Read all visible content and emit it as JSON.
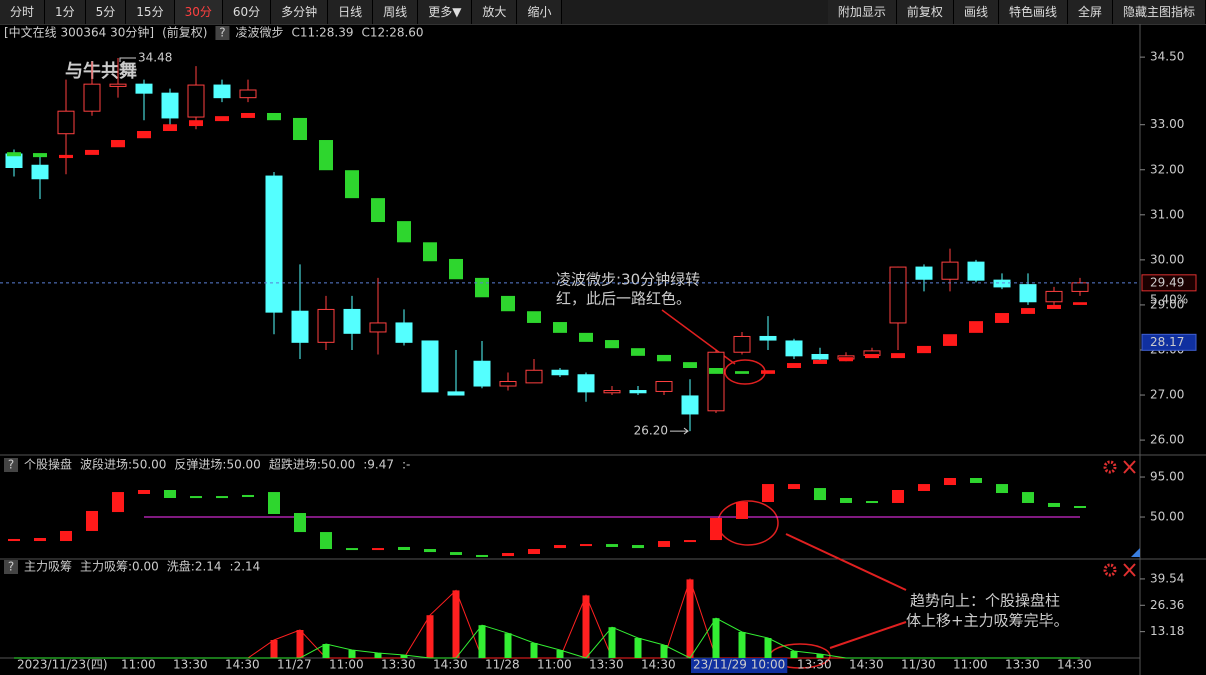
{
  "toolbar": {
    "left": [
      "分时",
      "1分",
      "5分",
      "15分",
      "30分",
      "60分",
      "多分钟",
      "日线",
      "周线",
      "更多▼",
      "放大",
      "缩小"
    ],
    "right": [
      "附加显示",
      "前复权",
      "画线",
      "特色画线",
      "全屏",
      "隐藏主图指标"
    ]
  },
  "help": "?",
  "watermark": "与牛共舞",
  "chart_data": [
    {
      "type": "candlestick",
      "title": "[中文在线 300364 30分钟]",
      "subtitle": "(前复权)",
      "indicator": "凌波微步",
      "series_labels": [
        {
          "label": "C11:28.39",
          "color": "#ffffff"
        },
        {
          "label": "C12:28.60",
          "color": "#ffd700"
        }
      ],
      "open": [
        32.35,
        32.1,
        32.8,
        33.3,
        33.85,
        33.9,
        33.7,
        33.17,
        33.88,
        33.6,
        31.86,
        28.86,
        28.17,
        28.9,
        28.4,
        28.6,
        28.2,
        27.07,
        27.75,
        27.2,
        27.27,
        27.55,
        27.45,
        27.05,
        27.1,
        27.08,
        26.98,
        26.65,
        27.95,
        28.3,
        28.2,
        27.9,
        27.8,
        27.88,
        28.6,
        29.84,
        29.57,
        29.95,
        29.55,
        29.45,
        29.07,
        29.3
      ],
      "close": [
        32.05,
        31.8,
        33.3,
        33.9,
        33.9,
        33.7,
        33.15,
        33.88,
        33.6,
        33.77,
        28.84,
        28.17,
        28.9,
        28.37,
        28.6,
        28.17,
        27.07,
        27.0,
        27.2,
        27.3,
        27.55,
        27.45,
        27.07,
        27.1,
        27.05,
        27.3,
        26.58,
        27.95,
        28.3,
        28.22,
        27.87,
        27.8,
        27.87,
        27.98,
        29.84,
        29.57,
        29.95,
        29.55,
        29.4,
        29.07,
        29.3,
        29.49
      ],
      "high": [
        32.45,
        32.35,
        34.0,
        34.4,
        34.48,
        34.0,
        33.8,
        34.3,
        34.0,
        34.0,
        31.95,
        29.9,
        29.2,
        29.2,
        29.6,
        28.9,
        28.2,
        28.0,
        28.2,
        27.5,
        27.8,
        27.6,
        27.5,
        27.2,
        27.2,
        27.3,
        27.35,
        28.0,
        28.4,
        28.75,
        28.25,
        28.05,
        27.95,
        28.05,
        29.85,
        29.9,
        30.25,
        30.0,
        29.7,
        29.7,
        29.4,
        29.6
      ],
      "low": [
        31.85,
        31.35,
        31.9,
        33.2,
        33.6,
        33.1,
        32.9,
        32.9,
        33.5,
        33.5,
        28.35,
        27.8,
        28.0,
        28.0,
        27.9,
        28.1,
        27.07,
        27.0,
        27.15,
        27.1,
        27.27,
        27.4,
        26.85,
        27.0,
        27.0,
        27.0,
        26.2,
        26.6,
        27.9,
        28.0,
        27.8,
        27.75,
        27.75,
        27.85,
        28.0,
        29.3,
        29.3,
        29.5,
        29.35,
        29.0,
        29.0,
        29.2
      ],
      "up_color": "#ff4040",
      "down_color": "#54ffff",
      "step": {
        "top": [
          32.39,
          32.37,
          32.33,
          32.44,
          32.66,
          32.86,
          33.01,
          33.1,
          33.19,
          33.26,
          33.26,
          33.15,
          32.66,
          31.99,
          31.37,
          30.86,
          30.39,
          30.02,
          29.6,
          29.2,
          28.86,
          28.62,
          28.38,
          28.22,
          28.04,
          27.89,
          27.73,
          27.6,
          27.53,
          27.55,
          27.71,
          27.78,
          27.84,
          27.91,
          27.93,
          28.09,
          28.35,
          28.64,
          28.82,
          28.93,
          29.0,
          29.06
        ],
        "bottom": [
          32.3,
          32.28,
          32.26,
          32.33,
          32.5,
          32.7,
          32.86,
          32.97,
          33.08,
          33.15,
          33.1,
          32.66,
          31.99,
          31.37,
          30.84,
          30.39,
          29.97,
          29.57,
          29.17,
          28.86,
          28.6,
          28.38,
          28.18,
          28.04,
          27.87,
          27.75,
          27.6,
          27.47,
          27.47,
          27.47,
          27.6,
          27.69,
          27.75,
          27.82,
          27.82,
          27.93,
          28.09,
          28.38,
          28.6,
          28.8,
          28.91,
          29.0
        ],
        "colors": [
          "#2ed62e",
          "#2ed62e",
          "#ff1a1a",
          "#ff1a1a",
          "#ff1a1a",
          "#ff1a1a",
          "#ff1a1a",
          "#ff1a1a",
          "#ff1a1a",
          "#ff1a1a",
          "#2ed62e",
          "#2ed62e",
          "#2ed62e",
          "#2ed62e",
          "#2ed62e",
          "#2ed62e",
          "#2ed62e",
          "#2ed62e",
          "#2ed62e",
          "#2ed62e",
          "#2ed62e",
          "#2ed62e",
          "#2ed62e",
          "#2ed62e",
          "#2ed62e",
          "#2ed62e",
          "#2ed62e",
          "#2ed62e",
          "#2ed62e",
          "#ff1a1a",
          "#ff1a1a",
          "#ff1a1a",
          "#ff1a1a",
          "#ff1a1a",
          "#ff1a1a",
          "#ff1a1a",
          "#ff1a1a",
          "#ff1a1a",
          "#ff1a1a",
          "#ff1a1a",
          "#ff1a1a",
          "#ff1a1a"
        ]
      },
      "ylim": [
        25.78,
        34.88
      ],
      "yticks": [
        {
          "value": 34.5,
          "label": "34.50"
        },
        {
          "value": 33,
          "label": "33.00"
        },
        {
          "value": 32,
          "label": "32.00"
        },
        {
          "value": 31,
          "label": "31.00"
        },
        {
          "value": 30,
          "label": "30.00"
        },
        {
          "value": 29,
          "label": "29.00"
        },
        {
          "value": 28,
          "label": "28.00"
        },
        {
          "value": 27,
          "label": "27.00"
        },
        {
          "value": 26,
          "label": "26.00"
        }
      ],
      "high_mark": {
        "value": 34.48,
        "label": "34.48"
      },
      "low_mark": {
        "value": 26.2,
        "label": "26.20"
      },
      "last_price": {
        "value": 29.49,
        "label": "29.49"
      },
      "change": {
        "value": 5.4,
        "label": "5.40%"
      },
      "cursor_price": {
        "value": 28.17,
        "label": "28.17"
      },
      "note": [
        "凌波微步:30分钟绿转",
        "红，此后一路红色。"
      ]
    },
    {
      "type": "band-bar",
      "title": "个股操盘",
      "legend": [
        {
          "label": "波段进场:50.00",
          "color": "#ffffff"
        },
        {
          "label": "反弹进场:50.00",
          "color": "#ffff00"
        },
        {
          "label": "超跌进场:50.00",
          "color": "#ff33ff"
        },
        {
          "label": ":9.47",
          "color": "#ff3333"
        },
        {
          "label": ":-",
          "color": "#ff3333"
        }
      ],
      "top": [
        25.3,
        26.4,
        34.3,
        56.8,
        78.1,
        80.4,
        80.4,
        73.6,
        73.6,
        74.8,
        78.1,
        54.5,
        33.1,
        15.1,
        15.1,
        16.3,
        14.0,
        10.6,
        7.3,
        9.5,
        14.0,
        18.5,
        19.6,
        19.6,
        18.5,
        23.0,
        24.1,
        48.9,
        66.9,
        87.1,
        87.1,
        82.6,
        71.4,
        68.0,
        80.4,
        87.1,
        93.9,
        93.9,
        87.1,
        78.1,
        65.8,
        62.4
      ],
      "bottom": [
        23.0,
        23.0,
        23.0,
        34.3,
        55.6,
        75.9,
        71.4,
        71.4,
        71.4,
        72.5,
        53.4,
        33.1,
        14.0,
        12.9,
        12.9,
        12.9,
        10.6,
        7.3,
        5.0,
        6.1,
        8.4,
        15.1,
        17.4,
        16.3,
        15.1,
        16.3,
        21.9,
        24.1,
        47.8,
        66.9,
        81.5,
        69.1,
        65.8,
        65.8,
        65.8,
        79.3,
        86.0,
        88.3,
        77.0,
        65.8,
        61.3,
        61.3
      ],
      "colors": [
        "#ff1a1a",
        "#ff1a1a",
        "#ff1a1a",
        "#ff1a1a",
        "#ff1a1a",
        "#ff1a1a",
        "#2ed62e",
        "#2ed62e",
        "#2ed62e",
        "#2ed62e",
        "#2ed62e",
        "#2ed62e",
        "#2ed62e",
        "#2ed62e",
        "#ff1a1a",
        "#2ed62e",
        "#2ed62e",
        "#2ed62e",
        "#2ed62e",
        "#ff1a1a",
        "#ff1a1a",
        "#ff1a1a",
        "#ff1a1a",
        "#2ed62e",
        "#2ed62e",
        "#ff1a1a",
        "#ff1a1a",
        "#ff1a1a",
        "#ff1a1a",
        "#ff1a1a",
        "#ff1a1a",
        "#2ed62e",
        "#2ed62e",
        "#2ed62e",
        "#ff1a1a",
        "#ff1a1a",
        "#ff1a1a",
        "#2ed62e",
        "#2ed62e",
        "#2ed62e",
        "#2ed62e",
        "#2ed62e"
      ],
      "reference_line": 50,
      "reference_color": "#ff33ff",
      "ylim": [
        3.9,
        111.9
      ],
      "yticks": [
        {
          "value": 95,
          "label": "95.00"
        },
        {
          "value": 50,
          "label": "50.00"
        }
      ]
    },
    {
      "type": "bar",
      "title": "主力吸筹",
      "series": [
        {
          "label": "主力吸筹:0.00",
          "color": "#ff2020",
          "values": [
            0,
            0,
            0,
            0,
            0,
            0,
            0,
            0,
            0,
            0,
            9,
            14,
            0,
            0,
            0,
            0,
            21.4,
            33.8,
            0,
            0,
            0,
            0,
            31.3,
            0,
            0,
            0,
            39.3,
            0,
            0,
            0,
            0,
            0,
            0,
            0,
            0,
            0,
            0,
            0,
            0,
            0,
            0,
            0
          ]
        },
        {
          "label": "洗盘:2.14",
          "color": "#33ee33",
          "values": [
            0,
            0,
            0,
            0,
            0,
            0,
            0,
            0,
            0,
            0,
            0,
            0,
            7,
            4,
            2.5,
            1.5,
            0,
            0,
            16.4,
            12.4,
            7.5,
            4,
            0,
            15.4,
            10,
            6.5,
            0,
            19.9,
            13,
            10,
            3.5,
            2,
            0,
            0,
            0,
            0,
            0,
            0,
            0,
            0,
            0,
            0
          ]
        }
      ],
      "extra_label": {
        "label": ":2.14",
        "color": "#33ee33"
      },
      "categories": [
        "2023/11/23(四)",
        null,
        null,
        null,
        "11:00",
        null,
        "13:30",
        null,
        "14:30",
        null,
        "11/27",
        null,
        "11:00",
        null,
        "13:30",
        null,
        "14:30",
        null,
        "11/28",
        null,
        "11:00",
        null,
        "13:30",
        null,
        "14:30",
        null,
        "23/11/29 10:00",
        null,
        null,
        null,
        "13:30",
        null,
        "14:30",
        null,
        "11/30",
        null,
        "11:00",
        null,
        "13:30",
        null,
        "14:30",
        null
      ],
      "cursor_index": 26,
      "ylim": [
        0,
        45
      ],
      "yticks": [
        39.54,
        26.36,
        13.18
      ]
    }
  ],
  "note2": [
    "趋势向上：个股操盘柱",
    "体上移+主力吸筹完毕。"
  ]
}
